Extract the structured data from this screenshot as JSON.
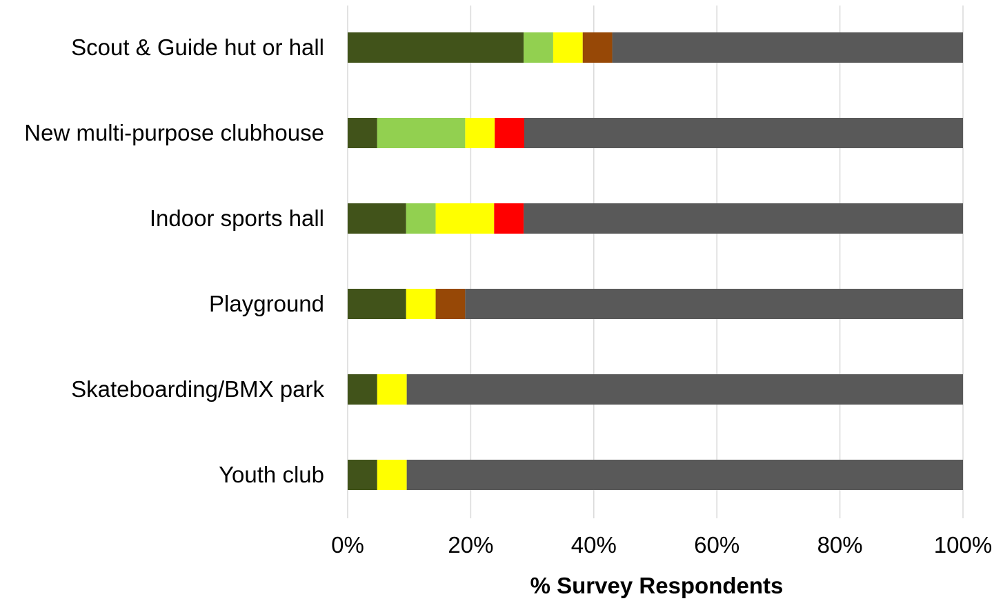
{
  "chart_data": {
    "type": "bar",
    "orientation": "horizontal",
    "stacked": true,
    "categories": [
      "Scout & Guide hut or hall",
      "New multi-purpose clubhouse",
      "Indoor sports hall",
      "Playground",
      "Skateboarding/BMX park",
      "Youth club"
    ],
    "series": [
      {
        "color": "#41531a",
        "values": [
          28.6,
          4.8,
          9.5,
          9.5,
          4.8,
          4.8
        ]
      },
      {
        "color": "#92d050",
        "values": [
          4.8,
          14.3,
          4.8,
          0,
          0,
          0
        ]
      },
      {
        "color": "#ffff00",
        "values": [
          4.8,
          4.8,
          9.5,
          4.8,
          4.8,
          4.8
        ]
      },
      {
        "color": "#ff0000",
        "values": [
          0,
          4.8,
          4.8,
          0,
          0,
          0
        ]
      },
      {
        "color": "#974806",
        "values": [
          4.8,
          0,
          0,
          4.8,
          0,
          0
        ]
      },
      {
        "color": "#595959",
        "values": [
          57.0,
          71.3,
          71.4,
          80.9,
          90.4,
          90.4
        ]
      }
    ],
    "xlim": [
      0,
      100
    ],
    "xticks": [
      0,
      20,
      40,
      60,
      80,
      100
    ],
    "xtick_labels": [
      "0%",
      "20%",
      "40%",
      "60%",
      "80%",
      "100%"
    ],
    "xlabel": "% Survey Respondents",
    "ylabel": "",
    "title": "",
    "grid": "vertical",
    "legend": "none"
  }
}
